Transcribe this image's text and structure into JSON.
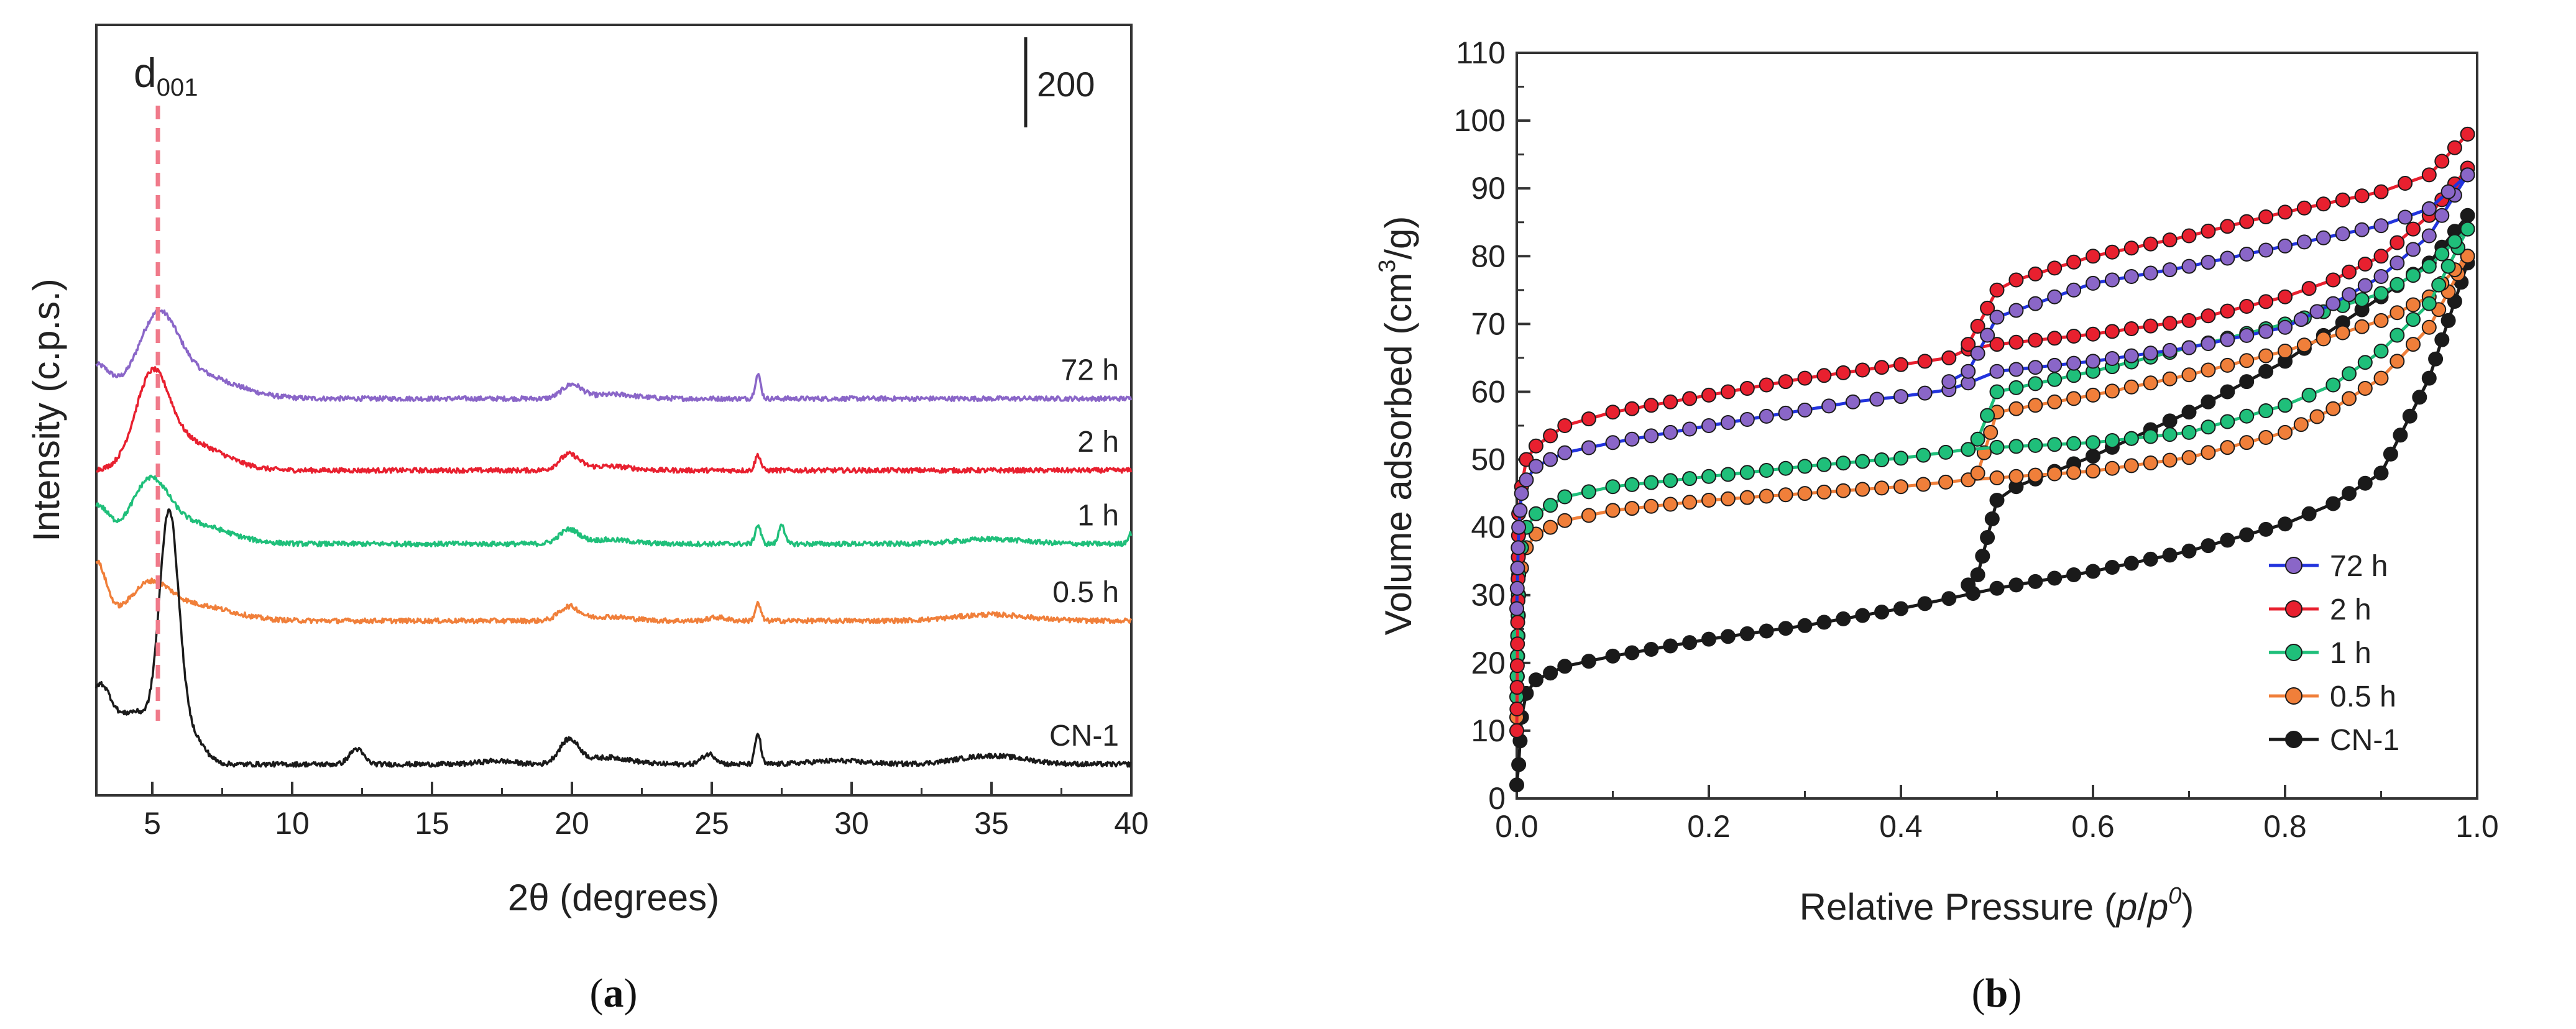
{
  "chart_data": [
    {
      "panel": "(a)",
      "panel_letter": "a",
      "type": "line",
      "xlabel": "2θ (degrees)",
      "ylabel": "Intensity (c.p.s.)",
      "xlim": [
        3,
        40
      ],
      "xticks": [
        "5",
        "10",
        "15",
        "20",
        "25",
        "30",
        "35",
        "40"
      ],
      "scale_bar_label": "200",
      "peak_marker": {
        "label_main": "d",
        "label_sub": "001",
        "x": 5.2
      },
      "series": [
        {
          "name": "72 h",
          "color": "#8a66c8",
          "offset": 1070,
          "base": 0,
          "peaks": [
            [
              3.0,
              95,
              0.5
            ],
            [
              5.2,
              210,
              0.7
            ],
            [
              6.5,
              70,
              1.4
            ],
            [
              20.0,
              40,
              0.35
            ],
            [
              21.5,
              12,
              0.8
            ],
            [
              26.65,
              70,
              0.1
            ]
          ]
        },
        {
          "name": "2 h",
          "color": "#e8202f",
          "offset": 860,
          "base": 0,
          "peaks": [
            [
              5.0,
              250,
              0.6
            ],
            [
              6.3,
              80,
              1.2
            ],
            [
              19.9,
              45,
              0.35
            ],
            [
              21.3,
              12,
              0.8
            ],
            [
              26.65,
              45,
              0.1
            ]
          ]
        },
        {
          "name": "1 h",
          "color": "#1fbf7a",
          "offset": 645,
          "base": 0,
          "peaks": [
            [
              3.0,
              110,
              0.45
            ],
            [
              4.9,
              160,
              0.65
            ],
            [
              6.3,
              60,
              1.3
            ],
            [
              19.9,
              40,
              0.35
            ],
            [
              21.3,
              12,
              0.8
            ],
            [
              26.65,
              55,
              0.1
            ],
            [
              27.5,
              60,
              0.1
            ],
            [
              35.0,
              14,
              1.2
            ],
            [
              40.0,
              30,
              0.12
            ]
          ]
        },
        {
          "name": "0.5 h",
          "color": "#f07f3a",
          "offset": 420,
          "base": 0,
          "peaks": [
            [
              3.0,
              170,
              0.35
            ],
            [
              4.9,
              95,
              0.7
            ],
            [
              6.5,
              45,
              1.3
            ],
            [
              19.9,
              40,
              0.35
            ],
            [
              21.3,
              12,
              0.8
            ],
            [
              25.2,
              10,
              0.3
            ],
            [
              26.65,
              50,
              0.1
            ],
            [
              35.0,
              18,
              1.3
            ]
          ]
        },
        {
          "name": "CN-1",
          "color": "#1a1a1a",
          "offset": 0,
          "base": 0,
          "peaks": [
            [
              3.1,
              220,
              0.45
            ],
            [
              4.4,
              150,
              0.6
            ],
            [
              5.6,
              710,
              0.35
            ],
            [
              6.4,
              80,
              0.45
            ],
            [
              12.3,
              45,
              0.25
            ],
            [
              17.3,
              10,
              0.6
            ],
            [
              19.9,
              70,
              0.35
            ],
            [
              21.3,
              20,
              0.8
            ],
            [
              24.9,
              30,
              0.25
            ],
            [
              26.65,
              90,
              0.1
            ],
            [
              29.5,
              10,
              1.0
            ],
            [
              35.0,
              25,
              1.2
            ]
          ]
        }
      ]
    },
    {
      "panel": "(b)",
      "panel_letter": "b",
      "type": "line",
      "xlabel": "Relative Pressure (p/p0)",
      "xlabel_main": "Relative Pressure (",
      "xlabel_italic_p1": "p",
      "xlabel_slash": "/",
      "xlabel_italic_p2": "p",
      "xlabel_sup": "0",
      "xlabel_close": ")",
      "ylabel": "Volume adsorbed (cm3/g)",
      "ylabel_main": "Volume adsorbed (cm",
      "ylabel_sup": "3",
      "ylabel_close": "/g)",
      "xlim": [
        0.0,
        1.0
      ],
      "ylim": [
        0,
        110
      ],
      "xticks": [
        "0.0",
        "0.2",
        "0.4",
        "0.6",
        "0.8",
        "1.0"
      ],
      "yticks": [
        "0",
        "10",
        "20",
        "30",
        "40",
        "50",
        "60",
        "70",
        "80",
        "90",
        "100",
        "110"
      ],
      "legend_position": "bottom-right",
      "series": [
        {
          "name": "72 h",
          "color": "#8a66c8",
          "line_color": "#2233dd",
          "adsorption": [
            [
              0.0,
              28
            ],
            [
              0.002,
              40
            ],
            [
              0.005,
              45
            ],
            [
              0.01,
              47
            ],
            [
              0.02,
              49
            ],
            [
              0.05,
              51
            ],
            [
              0.1,
              52.5
            ],
            [
              0.2,
              55
            ],
            [
              0.3,
              57.3
            ],
            [
              0.35,
              58.5
            ],
            [
              0.4,
              59.3
            ],
            [
              0.45,
              60.3
            ],
            [
              0.47,
              61.3
            ],
            [
              0.5,
              63
            ],
            [
              0.6,
              64.5
            ],
            [
              0.7,
              66.5
            ],
            [
              0.8,
              69.5
            ],
            [
              0.85,
              73
            ],
            [
              0.9,
              77
            ],
            [
              0.95,
              83
            ],
            [
              0.99,
              92
            ]
          ],
          "desorption": [
            [
              0.99,
              92
            ],
            [
              0.95,
              87
            ],
            [
              0.9,
              84.5
            ],
            [
              0.8,
              81.5
            ],
            [
              0.7,
              78.5
            ],
            [
              0.6,
              76
            ],
            [
              0.52,
              72
            ],
            [
              0.5,
              71
            ],
            [
              0.47,
              63
            ],
            [
              0.45,
              61.5
            ]
          ]
        },
        {
          "name": "2 h",
          "color": "#e8202f",
          "line_color": "#e8202f",
          "adsorption": [
            [
              0.0,
              10
            ],
            [
              0.002,
              42
            ],
            [
              0.005,
              46
            ],
            [
              0.01,
              50
            ],
            [
              0.02,
              52
            ],
            [
              0.05,
              55
            ],
            [
              0.1,
              57
            ],
            [
              0.2,
              59.5
            ],
            [
              0.3,
              62
            ],
            [
              0.4,
              64
            ],
            [
              0.45,
              65
            ],
            [
              0.47,
              66.3
            ],
            [
              0.5,
              67
            ],
            [
              0.6,
              68.5
            ],
            [
              0.7,
              70.5
            ],
            [
              0.8,
              74
            ],
            [
              0.85,
              76.5
            ],
            [
              0.9,
              80
            ],
            [
              0.95,
              86
            ],
            [
              0.99,
              93
            ]
          ],
          "desorption": [
            [
              0.99,
              98
            ],
            [
              0.95,
              92
            ],
            [
              0.9,
              89.5
            ],
            [
              0.8,
              86.5
            ],
            [
              0.7,
              83
            ],
            [
              0.6,
              80
            ],
            [
              0.52,
              76.5
            ],
            [
              0.5,
              75
            ],
            [
              0.47,
              67
            ]
          ]
        },
        {
          "name": "1 h",
          "color": "#1fbf7a",
          "line_color": "#1fbf7a",
          "adsorption": [
            [
              0.0,
              15
            ],
            [
              0.002,
              33
            ],
            [
              0.005,
              37
            ],
            [
              0.01,
              40
            ],
            [
              0.02,
              42
            ],
            [
              0.05,
              44.5
            ],
            [
              0.1,
              46
            ],
            [
              0.2,
              47.5
            ],
            [
              0.3,
              49
            ],
            [
              0.4,
              50.2
            ],
            [
              0.47,
              51.5
            ],
            [
              0.5,
              51.8
            ],
            [
              0.6,
              52.5
            ],
            [
              0.7,
              54
            ],
            [
              0.8,
              58
            ],
            [
              0.85,
              61
            ],
            [
              0.9,
              66
            ],
            [
              0.95,
              73
            ],
            [
              0.99,
              84
            ]
          ],
          "desorption": [
            [
              0.99,
              84
            ],
            [
              0.95,
              78.5
            ],
            [
              0.9,
              74.5
            ],
            [
              0.8,
              70
            ],
            [
              0.7,
              66.5
            ],
            [
              0.6,
              63
            ],
            [
              0.5,
              60
            ],
            [
              0.48,
              53
            ]
          ]
        },
        {
          "name": "0.5 h",
          "color": "#f07f3a",
          "line_color": "#f07f3a",
          "adsorption": [
            [
              0.0,
              12
            ],
            [
              0.002,
              30
            ],
            [
              0.005,
              34
            ],
            [
              0.01,
              37
            ],
            [
              0.02,
              39
            ],
            [
              0.05,
              41
            ],
            [
              0.1,
              42.5
            ],
            [
              0.2,
              44
            ],
            [
              0.3,
              45
            ],
            [
              0.4,
              46
            ],
            [
              0.47,
              47
            ],
            [
              0.5,
              47.3
            ],
            [
              0.6,
              48.3
            ],
            [
              0.7,
              50.3
            ],
            [
              0.8,
              54
            ],
            [
              0.85,
              57.5
            ],
            [
              0.9,
              62
            ],
            [
              0.95,
              69.5
            ],
            [
              0.99,
              80
            ]
          ],
          "desorption": [
            [
              0.99,
              80
            ],
            [
              0.95,
              74
            ],
            [
              0.9,
              70.5
            ],
            [
              0.8,
              66
            ],
            [
              0.7,
              62.5
            ],
            [
              0.6,
              59.5
            ],
            [
              0.5,
              57
            ],
            [
              0.48,
              48
            ]
          ]
        },
        {
          "name": "CN-1",
          "color": "#1a1a1a",
          "line_color": "#1a1a1a",
          "adsorption": [
            [
              0.0,
              2
            ],
            [
              0.002,
              5
            ],
            [
              0.005,
              12
            ],
            [
              0.01,
              15.5
            ],
            [
              0.02,
              17.5
            ],
            [
              0.05,
              19.5
            ],
            [
              0.1,
              21
            ],
            [
              0.2,
              23.5
            ],
            [
              0.3,
              25.5
            ],
            [
              0.4,
              28
            ],
            [
              0.45,
              29.5
            ],
            [
              0.5,
              31
            ],
            [
              0.6,
              33.5
            ],
            [
              0.7,
              36.5
            ],
            [
              0.8,
              40.5
            ],
            [
              0.85,
              43.5
            ],
            [
              0.9,
              48
            ],
            [
              0.95,
              62
            ],
            [
              0.99,
              79
            ]
          ],
          "desorption": [
            [
              0.99,
              86
            ],
            [
              0.95,
              79
            ],
            [
              0.9,
              74
            ],
            [
              0.8,
              64.5
            ],
            [
              0.7,
              57
            ],
            [
              0.6,
              50.5
            ],
            [
              0.52,
              46
            ],
            [
              0.5,
              44
            ],
            [
              0.48,
              33
            ],
            [
              0.47,
              31.5
            ]
          ]
        }
      ]
    }
  ]
}
